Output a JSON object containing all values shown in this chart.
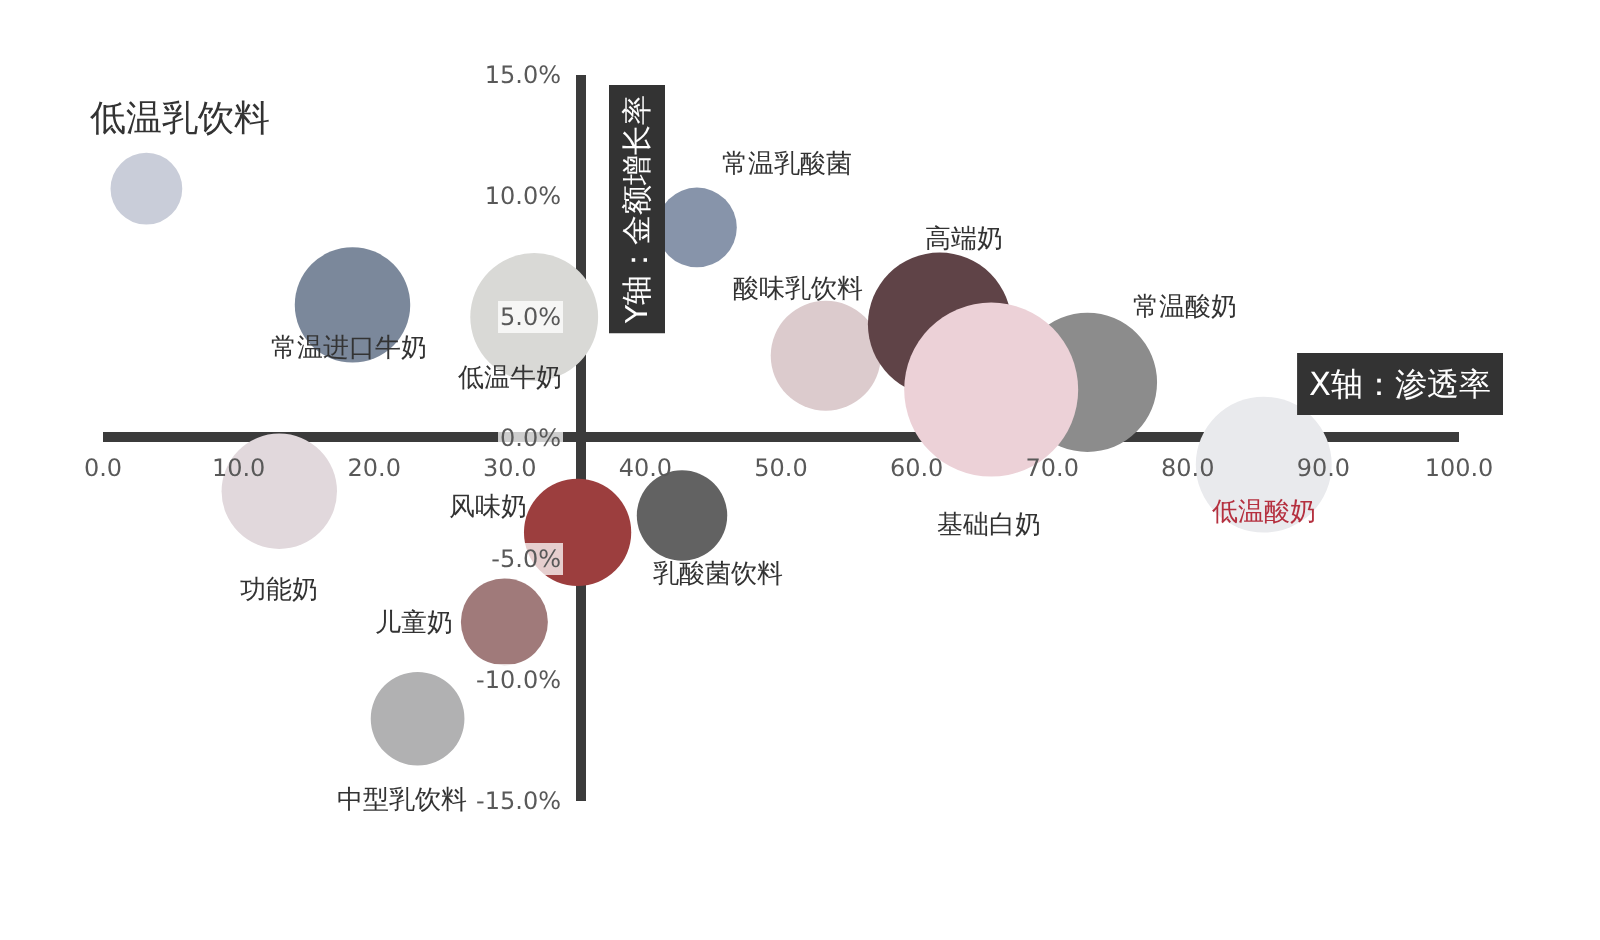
{
  "chart_data": {
    "type": "bubble",
    "xlabel": "X轴：渗透率",
    "ylabel": "Y轴：金额增长率",
    "xlim": [
      0,
      100
    ],
    "ylim": [
      -15,
      15
    ],
    "xticks": [
      {
        "value": 0,
        "label": "0.0"
      },
      {
        "value": 10,
        "label": "10.0"
      },
      {
        "value": 20,
        "label": "20.0"
      },
      {
        "value": 30,
        "label": "30.0"
      },
      {
        "value": 40,
        "label": "40.0"
      },
      {
        "value": 50,
        "label": "50.0"
      },
      {
        "value": 60,
        "label": "60.0"
      },
      {
        "value": 70,
        "label": "70.0"
      },
      {
        "value": 80,
        "label": "80.0"
      },
      {
        "value": 90,
        "label": "90.0"
      },
      {
        "value": 100,
        "label": "100.0"
      }
    ],
    "yticks": [
      {
        "value": -15,
        "label": "-15.0%"
      },
      {
        "value": -10,
        "label": "-10.0%"
      },
      {
        "value": -5,
        "label": "-5.0%"
      },
      {
        "value": 0,
        "label": "0.0%"
      },
      {
        "value": 5,
        "label": "5.0%"
      },
      {
        "value": 10,
        "label": "10.0%"
      },
      {
        "value": 15,
        "label": "15.0%"
      }
    ],
    "series": [
      {
        "name": "低温乳饮料",
        "color": "#c9cdd9",
        "x": [
          3.2
        ],
        "values": [
          10.3
        ],
        "sizes": [
          0.17
        ]
      },
      {
        "name": "常温进口牛奶",
        "color": "#7b889b",
        "x": [
          18.4
        ],
        "values": [
          5.5
        ],
        "sizes": [
          0.44
        ]
      },
      {
        "name": "低温牛奶",
        "color": "#d9d9d6",
        "x": [
          31.8
        ],
        "values": [
          5.0
        ],
        "sizes": [
          0.54
        ]
      },
      {
        "name": "常温乳酸菌",
        "color": "#8794aa",
        "x": [
          43.8
        ],
        "values": [
          8.7
        ],
        "sizes": [
          0.21
        ]
      },
      {
        "name": "酸味乳饮料",
        "color": "#dccbcd",
        "x": [
          53.3
        ],
        "values": [
          3.4
        ],
        "sizes": [
          0.4
        ]
      },
      {
        "name": "高端奶",
        "color": "#5f4347",
        "x": [
          61.7
        ],
        "values": [
          4.7
        ],
        "sizes": [
          0.68
        ]
      },
      {
        "name": "常温酸奶",
        "color": "#8c8c8c",
        "x": [
          72.6
        ],
        "values": [
          2.3
        ],
        "sizes": [
          0.64
        ]
      },
      {
        "name": "基础白奶",
        "color": "#ecd1d7",
        "x": [
          65.5
        ],
        "values": [
          2.0
        ],
        "sizes": [
          1
        ]
      },
      {
        "name": "低温酸奶",
        "color": "#e9eaed",
        "x": [
          85.6
        ],
        "values": [
          -1.1
        ],
        "sizes": [
          0.61
        ]
      },
      {
        "name": "功能奶",
        "color": "#e1d8dc",
        "x": [
          13.0
        ],
        "values": [
          -2.2
        ],
        "sizes": [
          0.44
        ]
      },
      {
        "name": "风味奶",
        "color": "#9c3e3e",
        "x": [
          35.0
        ],
        "values": [
          -3.9
        ],
        "sizes": [
          0.38
        ]
      },
      {
        "name": "乳酸菌饮料",
        "color": "#626262",
        "x": [
          42.7
        ],
        "values": [
          -3.2
        ],
        "sizes": [
          0.27
        ]
      },
      {
        "name": "儿童奶",
        "color": "#a07a7a",
        "x": [
          29.6
        ],
        "values": [
          -7.6
        ],
        "sizes": [
          0.25
        ]
      },
      {
        "name": "中型乳饮料",
        "color": "#b1b1b2",
        "x": [
          23.2
        ],
        "values": [
          -11.6
        ],
        "sizes": [
          0.29
        ]
      }
    ]
  }
}
